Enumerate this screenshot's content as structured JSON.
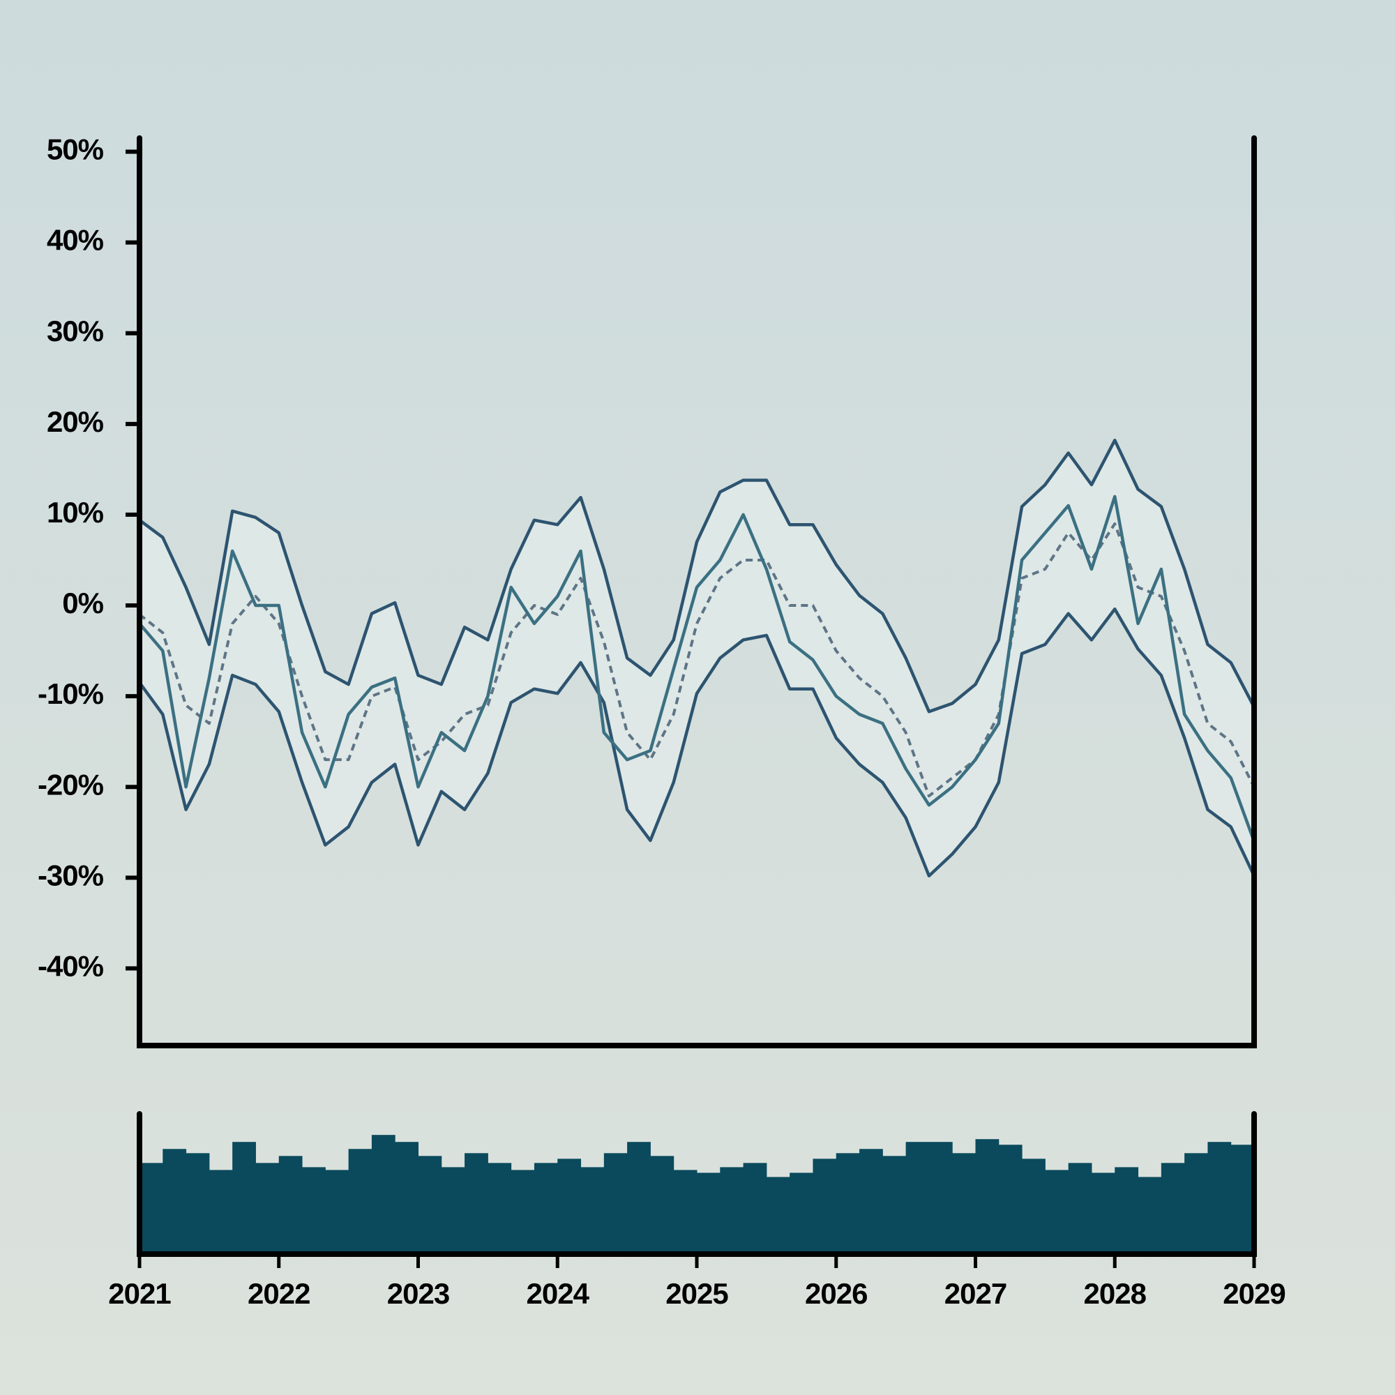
{
  "chart_data": [
    {
      "type": "line",
      "x": [
        2021,
        2021.1667,
        2021.3333,
        2021.5,
        2021.6667,
        2021.8333,
        2022,
        2022.1667,
        2022.3333,
        2022.5,
        2022.6667,
        2022.8333,
        2023,
        2023.1667,
        2023.3333,
        2023.5,
        2023.6667,
        2023.8333,
        2024,
        2024.1667,
        2024.3333,
        2024.5,
        2024.6667,
        2024.8333,
        2025,
        2025.1667,
        2025.3333,
        2025.5,
        2025.6667,
        2025.8333,
        2026,
        2026.1667,
        2026.3333,
        2026.5,
        2026.6667,
        2026.8333,
        2027,
        2027.1667,
        2027.3333,
        2027.5,
        2027.6667,
        2027.8333,
        2028,
        2028.1667,
        2028.3333,
        2028.5,
        2028.6667,
        2028.8333,
        2029
      ],
      "xlim": [
        2021,
        2029
      ],
      "ylim": [
        -48.5,
        51.5
      ],
      "yticks": [
        {
          "value": 50,
          "label": "50%"
        },
        {
          "value": 40,
          "label": "40%"
        },
        {
          "value": 30,
          "label": "30%"
        },
        {
          "value": 20,
          "label": "20%"
        },
        {
          "value": 10,
          "label": "10%"
        },
        {
          "value": 0,
          "label": "0%"
        },
        {
          "value": -10,
          "label": "-10%"
        },
        {
          "value": -20,
          "label": "-20%"
        },
        {
          "value": -30,
          "label": "-30%"
        },
        {
          "value": -40,
          "label": "-40%"
        }
      ],
      "band_color": "#e2ebea",
      "series": [
        {
          "color": "#2d5470",
          "values": [
            9.4,
            7.5,
            2,
            -4.3,
            10.4,
            9.7,
            8,
            0,
            -7.3,
            -8.7,
            -0.9,
            0.3,
            -7.7,
            -8.7,
            -2.4,
            -3.8,
            4,
            9.4,
            8.9,
            11.9,
            4,
            -5.8,
            -7.7,
            -3.8,
            7,
            12.5,
            13.8,
            13.8,
            8.9,
            8.9,
            4.5,
            1.1,
            -0.9,
            -5.8,
            -11.7,
            -10.8,
            -8.7,
            -3.8,
            10.9,
            13.3,
            16.8,
            13.3,
            18.2,
            12.8,
            10.9,
            4,
            -4.3,
            -6.3,
            -11.2
          ]
        },
        {
          "color": "#2d5470",
          "values": [
            -8.5,
            -12,
            -22.5,
            -17.5,
            -7.7,
            -8.7,
            -11.7,
            -19.5,
            -26.4,
            -24.4,
            -19.5,
            -17.5,
            -26.4,
            -20.5,
            -22.5,
            -18.5,
            -10.7,
            -9.2,
            -9.7,
            -6.3,
            -10.7,
            -22.5,
            -25.9,
            -19.5,
            -9.7,
            -5.8,
            -3.8,
            -3.3,
            -9.2,
            -9.2,
            -14.6,
            -17.5,
            -19.5,
            -23.4,
            -29.8,
            -27.4,
            -24.4,
            -19.5,
            -5.3,
            -4.3,
            -0.9,
            -3.8,
            -0.4,
            -4.8,
            -7.7,
            -14.6,
            -22.5,
            -24.4,
            -29.8
          ]
        },
        {
          "color": "#5e7486",
          "dashed": true,
          "values": [
            -1,
            -3,
            -11,
            -13,
            -2,
            1,
            -2,
            -10,
            -17,
            -17,
            -10,
            -9,
            -17,
            -15,
            -12,
            -11,
            -3,
            0,
            -1,
            3,
            -4,
            -14,
            -17,
            -12,
            -2,
            3,
            5,
            5,
            0,
            0,
            -5,
            -8,
            -10,
            -14,
            -21,
            -19,
            -17,
            -12,
            3,
            4,
            8,
            5,
            9,
            2,
            1,
            -5,
            -13,
            -15,
            -20
          ]
        },
        {
          "color": "#3b7082",
          "values": [
            -2,
            -5,
            -20,
            -8,
            6,
            0,
            0,
            -14,
            -20,
            -12,
            -9,
            -8,
            -20,
            -14,
            -16,
            -10,
            2,
            -2,
            1,
            6,
            -14,
            -17,
            -16,
            -7,
            2,
            5,
            10,
            4,
            -4,
            -6,
            -10,
            -12,
            -13,
            -18,
            -22,
            -20,
            -17,
            -13,
            5,
            8,
            11,
            4,
            12,
            -2,
            4,
            -12,
            -16,
            -19,
            -26
          ]
        }
      ]
    },
    {
      "type": "bar",
      "x": [
        2021.0833,
        2021.25,
        2021.4167,
        2021.5833,
        2021.75,
        2021.9167,
        2022.0833,
        2022.25,
        2022.4167,
        2022.5833,
        2022.75,
        2022.9167,
        2023.0833,
        2023.25,
        2023.4167,
        2023.5833,
        2023.75,
        2023.9167,
        2024.0833,
        2024.25,
        2024.4167,
        2024.5833,
        2024.75,
        2024.9167,
        2025.0833,
        2025.25,
        2025.4167,
        2025.5833,
        2025.75,
        2025.9167,
        2026.0833,
        2026.25,
        2026.4167,
        2026.5833,
        2026.75,
        2026.9167,
        2027.0833,
        2027.25,
        2027.4167,
        2027.5833,
        2027.75,
        2027.9167,
        2028.0833,
        2028.25,
        2028.4167,
        2028.5833,
        2028.75,
        2028.9167
      ],
      "values": [
        65,
        75,
        72,
        60,
        80,
        65,
        70,
        62,
        60,
        75,
        85,
        80,
        70,
        62,
        72,
        65,
        60,
        65,
        68,
        62,
        72,
        80,
        70,
        60,
        58,
        62,
        65,
        55,
        58,
        68,
        72,
        75,
        70,
        80,
        80,
        72,
        82,
        78,
        68,
        60,
        65,
        58,
        62,
        55,
        65,
        72,
        80,
        78
      ],
      "color": "#0a4a5c",
      "xlim": [
        2021,
        2029
      ],
      "ylim": [
        0,
        100
      ],
      "xticks": [
        2021,
        2022,
        2023,
        2024,
        2025,
        2026,
        2027,
        2028,
        2029
      ]
    }
  ]
}
